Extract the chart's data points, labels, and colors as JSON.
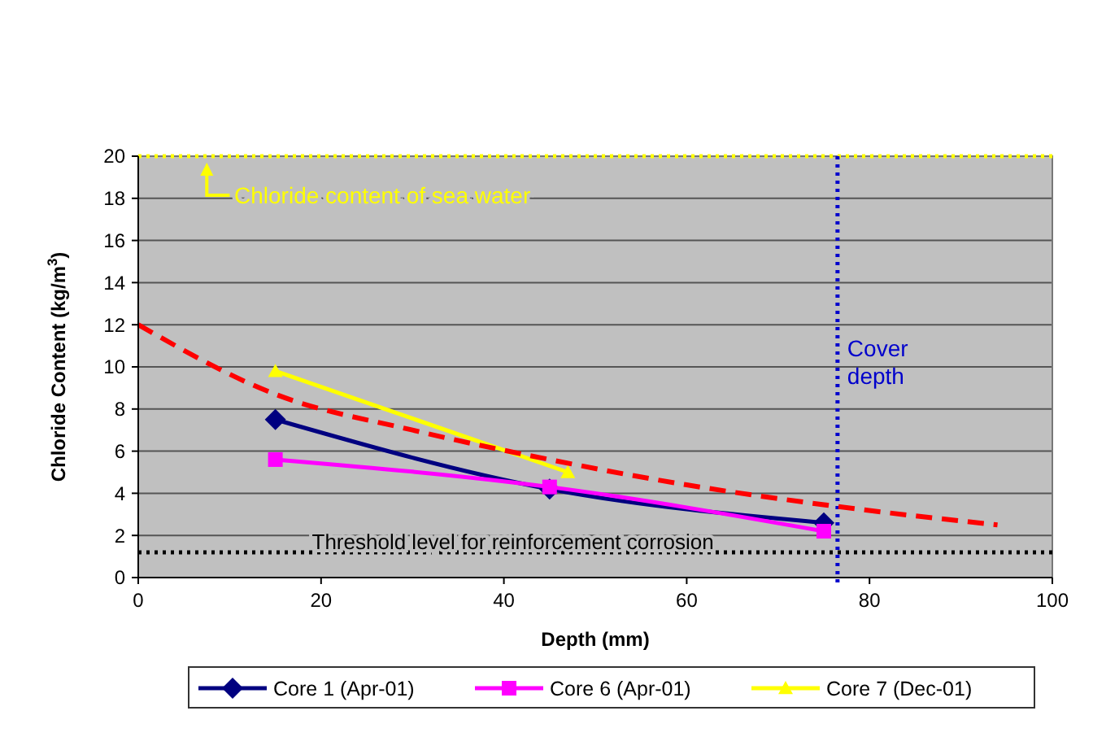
{
  "chart_data": {
    "type": "line",
    "xlabel": "Depth (mm)",
    "ylabel": "Chloride Content (kg/m$^{3}$)",
    "xlim": [
      0,
      100
    ],
    "xticks": [
      0,
      20,
      40,
      60,
      80,
      100
    ],
    "ylim": [
      0,
      20
    ],
    "yticks": [
      0,
      2,
      4,
      6,
      8,
      10,
      12,
      14,
      16,
      18,
      20
    ],
    "grid": "y",
    "legend": "bottom",
    "series": [
      {
        "name": "Core 1 (Apr-01)",
        "color": "#000080",
        "x": [
          15,
          45,
          75
        ],
        "values": [
          7.5,
          4.2,
          2.6
        ],
        "marker": "diamond"
      },
      {
        "name": "Core 6 (Apr-01)",
        "color": "#ff00ff",
        "x": [
          15,
          45,
          75
        ],
        "values": [
          5.6,
          4.3,
          2.2
        ],
        "marker": "square"
      },
      {
        "name": "Core 7 (Dec-01)",
        "color": "#ffff00",
        "x": [
          15,
          47
        ],
        "values": [
          9.8,
          5.0
        ],
        "marker": "triangle"
      },
      {
        "type": "line",
        "color": "#ff0000",
        "x": [
          0,
          15,
          30,
          45,
          60,
          76,
          94
        ],
        "values": [
          12,
          8.7,
          7.0,
          5.6,
          4.4,
          3.4,
          2.5
        ],
        "marker": "none",
        "line_style": "dashed"
      }
    ],
    "ref_lines": [
      {
        "axis": "y",
        "value": 20,
        "label": "Chloride content of sea water",
        "color": "#ffff00",
        "line_style": "dotted"
      },
      {
        "axis": "y",
        "value": 1.2,
        "label": "Threshold level for reinforcement corrosion",
        "color": "#000000",
        "line_style": "dotted"
      },
      {
        "axis": "x",
        "value": 76.5,
        "label": "Cover depth",
        "color": "#0000cc",
        "line_style": "dotted"
      }
    ]
  }
}
